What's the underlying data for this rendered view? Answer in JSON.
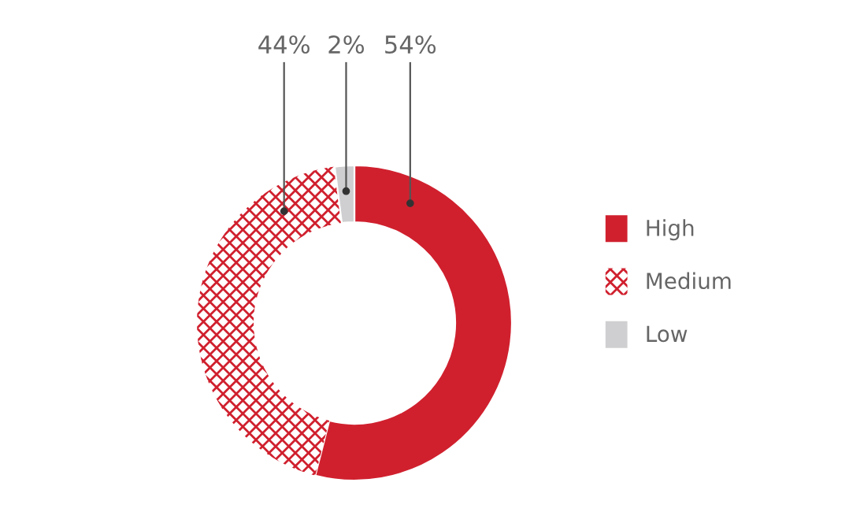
{
  "chart_data": {
    "type": "donut",
    "categories": [
      "High",
      "Medium",
      "Low"
    ],
    "values": [
      54,
      44,
      2
    ],
    "colors": [
      "#d0202e",
      "#d0202e",
      "#cfcfd1"
    ],
    "value_labels": [
      "54%",
      "44%",
      "2%"
    ],
    "legend": "right"
  }
}
